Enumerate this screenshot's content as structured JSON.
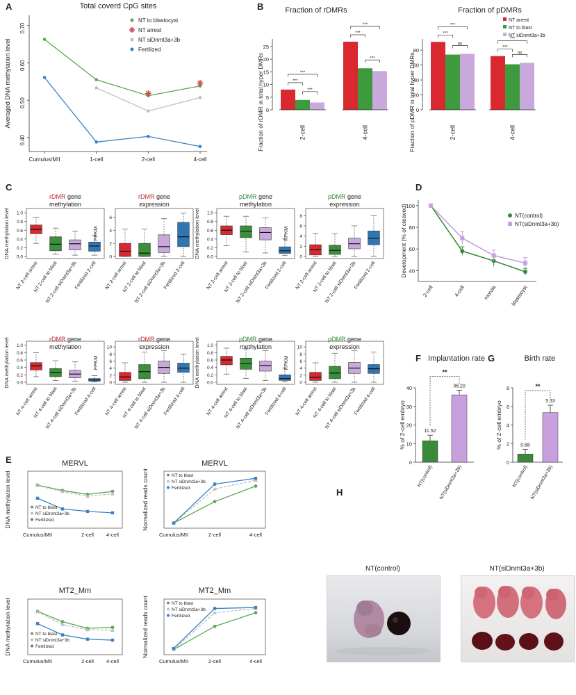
{
  "panel_letters": [
    "A",
    "B",
    "C",
    "D",
    "E",
    "F",
    "G",
    "H"
  ],
  "colors": {
    "nt_blast": "#5aa850",
    "nt_arrest": "#c94a4a",
    "nt_sidnmt": "#bfbfbf",
    "fertilized": "#3a82c4",
    "bar_red": "#d9282f",
    "bar_green": "#3d9b3d",
    "bar_violet": "#c9a9dc",
    "box_red": "#d9282f",
    "box_green": "#3a8f3a",
    "box_violet": "#c9a9dc",
    "box_blue": "#2f77b4",
    "rdmr": "#c0272d",
    "pdmr": "#2e8b3a",
    "e_control": "#3a8a3a",
    "e_sidnmt": "#c8a0de"
  },
  "panel_a": {
    "chart_data": {
      "type": "line",
      "title": "Total coverd CpG sites",
      "ylabel": "Averaged DNA methylation level",
      "categories": [
        "Cumulus/MII",
        "1-cell",
        "2-cell",
        "4-cell"
      ],
      "yticks": [
        "0.40",
        "0.50",
        "0.60",
        "0.70"
      ],
      "ylim": [
        0.37,
        0.72
      ],
      "series": [
        {
          "name": "NT to blastocyst",
          "values": [
            0.663,
            0.555,
            0.512,
            0.538
          ]
        },
        {
          "name": "NT siDnmt3a+3b",
          "values": [
            null,
            0.533,
            0.471,
            0.507
          ]
        },
        {
          "name": "Fertilized",
          "values": [
            0.561,
            0.388,
            0.403,
            0.376
          ]
        }
      ],
      "arrest_marks": {
        "name": "NT arrest",
        "values": [
          null,
          null,
          0.518,
          0.546
        ]
      },
      "legend": [
        "NT to blastocyst",
        "NT arrest",
        "NT siDnmt3a+3b",
        "Fertilized"
      ]
    }
  },
  "panel_b": {
    "charts": [
      {
        "type": "bar",
        "title": "Fraction of rDMRs",
        "ylabel": "Fraction of rDMR in total hyper DMRs",
        "groups": [
          "2-cell",
          "4-cell"
        ],
        "yticks": [
          "0",
          "5",
          "10",
          "15",
          "20",
          "25"
        ],
        "ylim": [
          0,
          28
        ],
        "series": [
          {
            "name": "NT arrest",
            "values": [
              8.0,
              26.9
            ]
          },
          {
            "name": "NT to blast",
            "values": [
              3.9,
              16.4
            ]
          },
          {
            "name": "NT siDnmt3a+3b",
            "values": [
              2.9,
              15.3
            ]
          }
        ],
        "sig": [
          "***",
          "***",
          "***",
          "***",
          "***",
          "***"
        ]
      },
      {
        "type": "bar",
        "title": "Fraction of pDMRs",
        "ylabel": "Fraction of pDMR in total hyper DMRs",
        "groups": [
          "2-cell",
          "4-cell"
        ],
        "yticks": [
          "0",
          "20",
          "40",
          "60",
          "80"
        ],
        "ylim": [
          0,
          95
        ],
        "series": [
          {
            "name": "NT arrest",
            "values": [
              91,
              72
            ]
          },
          {
            "name": "NT to blast",
            "values": [
              74,
              61
            ]
          },
          {
            "name": "NT siDnmt3a+3b",
            "values": [
              75,
              63
            ]
          }
        ],
        "sig": [
          "***",
          "***",
          "ns",
          "***",
          "***",
          "ns"
        ]
      }
    ],
    "legend": [
      "NT arrest",
      "NT to blast",
      "NT siDnmt3a+3b"
    ]
  },
  "panel_c": {
    "boxplots": [
      {
        "title_key": "rDMR",
        "title_rest1": " gene",
        "title_rest2": "methylation",
        "ylabel": "DNA methylation level",
        "yticks": [
          "0.0",
          "0.2",
          "0.4",
          "0.6",
          "0.8",
          "1.0"
        ],
        "ylim": [
          0,
          1.05
        ],
        "categories": [
          "NT 2-cell arrest",
          "NT 2-cell to blast",
          "NT 2-cell siDnmt3a+3b",
          "Fertilized 2-cell"
        ],
        "boxes": [
          [
            0.3,
            0.52,
            0.62,
            0.72,
            0.9
          ],
          [
            0.05,
            0.13,
            0.28,
            0.45,
            0.65
          ],
          [
            0.03,
            0.15,
            0.29,
            0.38,
            0.58
          ],
          [
            0.03,
            0.12,
            0.24,
            0.33,
            0.48
          ]
        ]
      },
      {
        "title_key": "rDMR",
        "title_rest1": " gene",
        "title_rest2": "expression",
        "ylabel": "FPKM",
        "yticks": [
          "0",
          "2",
          "4",
          "6"
        ],
        "ylim": [
          0,
          7
        ],
        "categories": [
          "NT 2-cell arrest",
          "NT 2-cell to blast",
          "NT 2-cell siDnmt3a+3b",
          "Fertilized 2-cell"
        ],
        "boxes": [
          [
            0,
            0,
            0.8,
            2.0,
            4.2
          ],
          [
            0,
            0,
            0.5,
            2.0,
            4.2
          ],
          [
            0,
            0.6,
            1.5,
            3.3,
            5.8
          ],
          [
            0,
            1.5,
            3.0,
            5.2,
            6.6
          ]
        ]
      },
      {
        "title_key": "pDMR",
        "title_rest1": " gene",
        "title_rest2": "methylation",
        "ylabel": "DNA methylation level",
        "yticks": [
          "0.0",
          "0.2",
          "0.4",
          "0.6",
          "0.8",
          "1.0"
        ],
        "ylim": [
          0,
          1.05
        ],
        "categories": [
          "NT 2-cell arrest",
          "NT 2-cell to blast",
          "NT 2-cell siDnmt3a+3b",
          "Fertilized 2-cell"
        ],
        "boxes": [
          [
            0.25,
            0.5,
            0.6,
            0.7,
            0.92
          ],
          [
            0.1,
            0.43,
            0.58,
            0.7,
            0.92
          ],
          [
            0.08,
            0.38,
            0.55,
            0.66,
            0.88
          ],
          [
            0.02,
            0.07,
            0.13,
            0.22,
            0.4
          ]
        ]
      },
      {
        "title_key": "pDMR",
        "title_rest1": " gene",
        "title_rest2": "expression",
        "ylabel": "FPKM",
        "yticks": [
          "0",
          "2",
          "4",
          "6",
          "8"
        ],
        "ylim": [
          0,
          9
        ],
        "categories": [
          "NT 2-cell arrest",
          "NT 2-cell to blast",
          "NT 2-cell siDnmt3a+3b",
          "Fertilized 2-cell"
        ],
        "boxes": [
          [
            0,
            0.3,
            1.3,
            2.3,
            4.5
          ],
          [
            0,
            0.4,
            1.2,
            2.2,
            4.5
          ],
          [
            0,
            1.5,
            2.5,
            3.6,
            6.0
          ],
          [
            0,
            2.3,
            3.6,
            5.0,
            8.0
          ]
        ]
      },
      {
        "title_key": "rDMR",
        "title_rest1": " gene",
        "title_rest2": "methylation",
        "ylabel": "DNA methylation level",
        "yticks": [
          "0.0",
          "0.2",
          "0.4",
          "0.6",
          "0.8",
          "1.0"
        ],
        "ylim": [
          0,
          1.05
        ],
        "categories": [
          "NT 4-cell arrest",
          "NT 4-cell to blast",
          "NT 4-cell siDnmt3a+3b",
          "Fertilized 4-cell"
        ],
        "boxes": [
          [
            0.15,
            0.33,
            0.44,
            0.53,
            0.8
          ],
          [
            0.05,
            0.15,
            0.26,
            0.37,
            0.58
          ],
          [
            0.03,
            0.12,
            0.22,
            0.32,
            0.55
          ],
          [
            0.01,
            0.03,
            0.06,
            0.1,
            0.18
          ]
        ]
      },
      {
        "title_key": "rDMR",
        "title_rest1": " gene",
        "title_rest2": "expression",
        "ylabel": "FPKM",
        "yticks": [
          "0",
          "2",
          "4",
          "6",
          "8",
          "10"
        ],
        "ylim": [
          0,
          11
        ],
        "categories": [
          "NT 4-cell arrest",
          "NT 4-cell to blast",
          "NT 4-cell siDnmt3a+3b",
          "Fertilized 4-cell"
        ],
        "boxes": [
          [
            0,
            0.5,
            1.5,
            2.8,
            5.5
          ],
          [
            0,
            1.0,
            3.0,
            5.0,
            8.5
          ],
          [
            0,
            2.5,
            4.2,
            6.0,
            9.0
          ],
          [
            0,
            2.8,
            4.0,
            5.4,
            8.0
          ]
        ]
      },
      {
        "title_key": "pDMR",
        "title_rest1": " gene",
        "title_rest2": "methylation",
        "ylabel": "DNA methylation level",
        "yticks": [
          "0.0",
          "0.2",
          "0.4",
          "0.6",
          "0.8",
          "1.0"
        ],
        "ylim": [
          0,
          1.05
        ],
        "categories": [
          "NT 4-cell arrest",
          "NT 4-cell to blast",
          "NT 4-cell siDnmt3a+3b",
          "Fertilized 4-cell"
        ],
        "boxes": [
          [
            0.22,
            0.47,
            0.6,
            0.7,
            0.92
          ],
          [
            0.1,
            0.35,
            0.5,
            0.65,
            0.9
          ],
          [
            0.05,
            0.3,
            0.45,
            0.57,
            0.85
          ],
          [
            0.01,
            0.05,
            0.1,
            0.2,
            0.38
          ]
        ]
      },
      {
        "title_key": "pDMR",
        "title_rest1": " gene",
        "title_rest2": "expression",
        "ylabel": "FPKM",
        "yticks": [
          "0",
          "2",
          "4",
          "6",
          "8",
          "10"
        ],
        "ylim": [
          0,
          11
        ],
        "categories": [
          "NT 4-cell arrest",
          "NT 4-cell to blast",
          "NT 4-cell siDnmt3a+3b",
          "Fertilized 4-cell"
        ],
        "boxes": [
          [
            0,
            0.5,
            1.4,
            2.8,
            5.5
          ],
          [
            0,
            1.0,
            2.6,
            4.5,
            8.2
          ],
          [
            0,
            2.5,
            4.0,
            5.6,
            9.0
          ],
          [
            0,
            2.5,
            3.8,
            5.0,
            8.5
          ]
        ]
      }
    ]
  },
  "panel_d": {
    "charts": [
      {
        "type": "line",
        "title": "MERVL",
        "ylabel": "DNA methylation level",
        "categories": [
          "Cumulus/MII",
          "1-cell",
          "2-cell",
          "4-cell"
        ],
        "ylim": [
          0,
          1
        ],
        "legend_pos": "bottom-left",
        "series": [
          {
            "name": "NT to blast",
            "values": [
              0.8,
              0.69,
              0.61,
              0.67
            ]
          },
          {
            "name": "NT siDnmt3a+3b",
            "values": [
              0.79,
              0.67,
              0.57,
              0.62
            ]
          },
          {
            "name": "Fertilized",
            "values": [
              0.53,
              0.31,
              0.26,
              0.23
            ]
          }
        ]
      },
      {
        "type": "line",
        "title": "MERVL",
        "ylabel": "Normalized reads count",
        "categories": [
          "Cumulus/MII",
          "2-cell",
          "4-cell"
        ],
        "ylim": [
          0,
          5
        ],
        "legend_pos": "top-left",
        "series": [
          {
            "name": "NT to blast",
            "values": [
              0.1,
              2.3,
              3.9
            ]
          },
          {
            "name": "NT siDnmt3a+3b",
            "values": [
              0.1,
              3.6,
              4.5
            ]
          },
          {
            "name": "Fertilized",
            "values": [
              0.1,
              4.1,
              4.7
            ]
          }
        ]
      },
      {
        "type": "line",
        "title": "MT2_Mm",
        "ylabel": "DNA methylation level",
        "categories": [
          "Cumulus/MII",
          "1-cell",
          "2-cell",
          "4-cell"
        ],
        "ylim": [
          0,
          1
        ],
        "legend_pos": "bottom-left",
        "series": [
          {
            "name": "NT to blast",
            "values": [
              0.83,
              0.61,
              0.47,
              0.49
            ]
          },
          {
            "name": "NT siDnmt3a+3b",
            "values": [
              0.82,
              0.55,
              0.44,
              0.43
            ]
          },
          {
            "name": "Fertilized",
            "values": [
              0.57,
              0.33,
              0.24,
              0.22
            ]
          }
        ]
      },
      {
        "type": "line",
        "title": "MT2_Mm",
        "ylabel": "Normalized reads count",
        "categories": [
          "Cumulus/MII",
          "2-cell",
          "4-cell"
        ],
        "ylim": [
          0,
          4.5
        ],
        "legend_pos": "top-left",
        "series": [
          {
            "name": "NT to blast",
            "values": [
              0.1,
              2.3,
              3.6
            ]
          },
          {
            "name": "NT siDnmt3a+3b",
            "values": [
              0.1,
              3.6,
              4.0
            ]
          },
          {
            "name": "Fertilized",
            "values": [
              0.2,
              4.0,
              4.1
            ]
          }
        ]
      }
    ]
  },
  "panel_e": {
    "chart_data": {
      "type": "line",
      "ylabel": "Development (% of cleaved)",
      "categories": [
        "2-cell",
        "4-cell",
        "morula",
        "blastocyst"
      ],
      "yticks": [
        "40",
        "60",
        "80",
        "100"
      ],
      "ylim": [
        30,
        105
      ],
      "series": [
        {
          "name": "NT(control)",
          "values": [
            100,
            58,
            49,
            39
          ],
          "err": [
            0,
            4,
            5,
            3
          ]
        },
        {
          "name": "NT(siDnmt3a+3b)",
          "values": [
            100,
            70,
            54,
            47
          ],
          "err": [
            0,
            6,
            5,
            5
          ]
        }
      ]
    }
  },
  "panel_f": {
    "chart_data": {
      "type": "bar",
      "title": "Implantation rate",
      "ylabel": "% of 2-cell embryo",
      "categories": [
        "NT(control)",
        "NT(siDnmt3a+3b)"
      ],
      "values": [
        11.52,
        36.2
      ],
      "value_labels": [
        "11.52",
        "36.20"
      ],
      "err": [
        3,
        2.5
      ],
      "yticks": [
        "0",
        "10",
        "20",
        "30",
        "40"
      ],
      "ylim": [
        0,
        40
      ],
      "sig": "**"
    }
  },
  "panel_g": {
    "chart_data": {
      "type": "bar",
      "title": "Birth rate",
      "ylabel": "% of 2-cell embryo",
      "categories": [
        "NT(control)",
        "NT(siDnmt3a+3b)"
      ],
      "values": [
        0.88,
        5.33
      ],
      "value_labels": [
        "0.88",
        "5.33"
      ],
      "err": [
        0.5,
        0.8
      ],
      "yticks": [
        "0",
        "2",
        "4",
        "6",
        "8"
      ],
      "ylim": [
        0,
        8
      ],
      "sig": "**"
    }
  },
  "panel_h": {
    "left_label": "NT(control)",
    "right_label": "NT(siDnmt3a+3b)"
  }
}
